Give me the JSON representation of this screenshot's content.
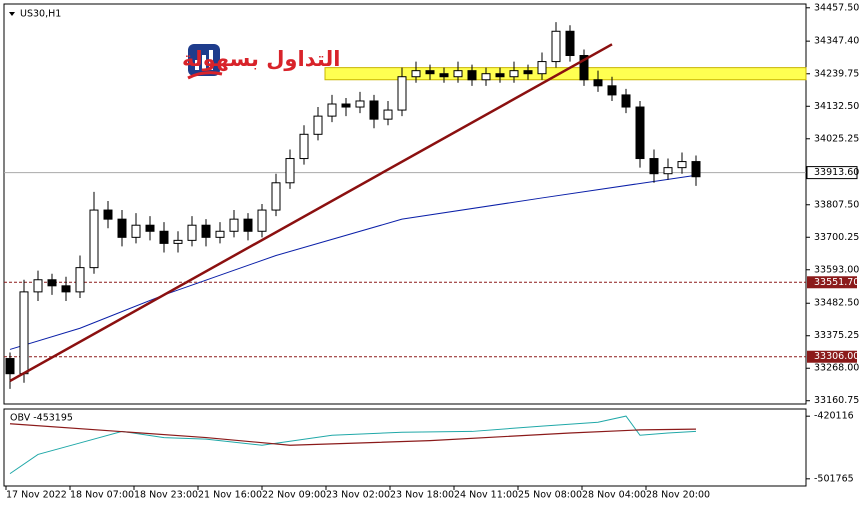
{
  "chart_data": {
    "type": "candlestick",
    "symbol": "US30,H1",
    "logo_text": "التداول بسهولة",
    "open": [
      33300,
      33250,
      33520,
      33560,
      33540,
      33520,
      33600,
      33790,
      33760,
      33700,
      33740,
      33720,
      33680,
      33690,
      33740,
      33700,
      33720,
      33760,
      33720,
      33790,
      33880,
      33960,
      34040,
      34100,
      34140,
      34130,
      34150,
      34090,
      34120,
      34230,
      34250,
      34240,
      34230,
      34250,
      34220,
      34240,
      34230,
      34250,
      34240,
      34280,
      34380,
      34300,
      34220,
      34200,
      34170,
      34130,
      33960,
      33910,
      33930,
      33950
    ],
    "high": [
      33320,
      33560,
      33590,
      33580,
      33570,
      33640,
      33850,
      33820,
      33790,
      33780,
      33770,
      33750,
      33720,
      33770,
      33760,
      33750,
      33790,
      33780,
      33810,
      33910,
      33990,
      34070,
      34130,
      34170,
      34160,
      34180,
      34170,
      34150,
      34260,
      34280,
      34270,
      34260,
      34280,
      34270,
      34260,
      34260,
      34280,
      34270,
      34310,
      34410,
      34400,
      34320,
      34250,
      34230,
      34190,
      34150,
      33990,
      33960,
      33980,
      33970
    ],
    "low": [
      33200,
      33220,
      33490,
      33510,
      33490,
      33500,
      33580,
      33730,
      33670,
      33680,
      33690,
      33650,
      33650,
      33670,
      33670,
      33680,
      33700,
      33690,
      33700,
      33770,
      33860,
      33940,
      34020,
      34080,
      34100,
      34110,
      34060,
      34070,
      34100,
      34210,
      34220,
      34210,
      34210,
      34200,
      34200,
      34210,
      34210,
      34220,
      34220,
      34260,
      34280,
      34200,
      34180,
      34150,
      34110,
      33930,
      33880,
      33890,
      33910,
      33870
    ],
    "close": [
      33250,
      33520,
      33560,
      33540,
      33520,
      33600,
      33790,
      33760,
      33700,
      33740,
      33720,
      33680,
      33690,
      33740,
      33700,
      33720,
      33760,
      33720,
      33790,
      33880,
      33960,
      34040,
      34100,
      34140,
      34130,
      34150,
      34090,
      34120,
      34230,
      34250,
      34240,
      34230,
      34250,
      34220,
      34240,
      34230,
      34250,
      34240,
      34280,
      34380,
      34300,
      34220,
      34200,
      34170,
      34130,
      33960,
      33910,
      33930,
      33950,
      33900
    ],
    "ylim": [
      33150,
      34470
    ],
    "yticks": [
      {
        "value": 34457.5,
        "label": "34457.50"
      },
      {
        "value": 34347.4,
        "label": "34347.40"
      },
      34239.75,
      {
        "value": 34132.5,
        "label": "34132.50"
      },
      34025.25,
      {
        "value": 33807.5,
        "label": "33807.50"
      },
      33700.25,
      {
        "value": 33593,
        "label": "33593.00"
      },
      {
        "value": 33482.5,
        "label": "33482.50"
      },
      33375.25,
      {
        "value": 33268,
        "label": "33268.00"
      },
      33160.75
    ],
    "current_price": {
      "value": 33913.6,
      "label": "33913.60"
    },
    "levels": [
      {
        "value": 33551.7,
        "label": "33551.70"
      },
      {
        "value": 33306,
        "label": "33306.00"
      }
    ],
    "zone": [
      34220,
      34260
    ],
    "trend_line": {
      "x": [
        0,
        43
      ],
      "y": [
        33226,
        34337
      ]
    },
    "moving_average": {
      "color": "#0a1fa8",
      "x": [
        0,
        5,
        11,
        19,
        28,
        38,
        49
      ],
      "values": [
        33330,
        33400,
        33510,
        33640,
        33760,
        33830,
        33905
      ]
    },
    "x_labels": [
      "17 Nov 2022",
      "18 Nov 07:00",
      "18 Nov 23:00",
      "21 Nov 16:00",
      "22 Nov 09:00",
      "23 Nov 02:00",
      "23 Nov 18:00",
      "24 Nov 11:00",
      "25 Nov 08:00",
      "28 Nov 04:00",
      "28 Nov 20:00"
    ],
    "obv": {
      "title": "OBV -453195",
      "ylim": [
        -511135,
        -410750
      ],
      "yticks": [
        -420116,
        -501765
      ],
      "obv_line": {
        "color": "#20a8a8",
        "x": [
          0,
          2,
          5,
          8,
          11,
          14,
          18,
          23,
          28,
          33,
          38,
          42,
          44,
          45,
          47,
          49
        ],
        "values": [
          -495000,
          -470000,
          -455000,
          -440000,
          -448000,
          -450000,
          -458000,
          -445000,
          -441000,
          -440000,
          -433000,
          -428000,
          -420000,
          -445000,
          -442000,
          -440000
        ]
      },
      "signal_line": {
        "color": "#8b1a1a",
        "x": [
          0,
          14,
          20,
          30,
          40,
          45,
          49
        ],
        "values": [
          -430000,
          -448000,
          -458000,
          -452000,
          -442000,
          -438000,
          -437000
        ]
      }
    }
  }
}
